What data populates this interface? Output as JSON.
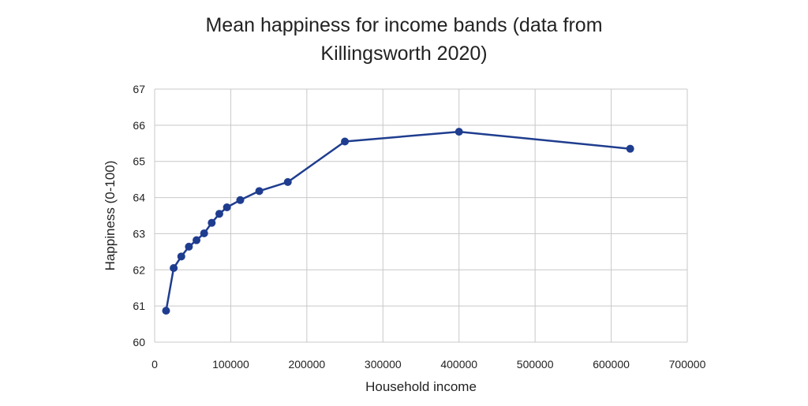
{
  "chart_data": {
    "type": "line",
    "title_lines": [
      "Mean happiness for income bands (data from",
      "Killingsworth 2020)"
    ],
    "xlabel": "Household income",
    "ylabel": "Happiness (0-100)",
    "xlim": [
      0,
      700000
    ],
    "ylim": [
      60,
      67
    ],
    "xticks": [
      0,
      100000,
      200000,
      300000,
      400000,
      500000,
      600000,
      700000
    ],
    "yticks": [
      60,
      61,
      62,
      63,
      64,
      65,
      66,
      67
    ],
    "grid": true,
    "color": "#1f3d8f",
    "series": [
      {
        "x": [
          15000,
          25000,
          35000,
          45000,
          55000,
          65000,
          75000,
          85000,
          95000,
          112500,
          137500,
          175000,
          250000,
          400000,
          625000
        ],
        "y": [
          60.87,
          62.05,
          62.37,
          62.64,
          62.82,
          63.01,
          63.3,
          63.55,
          63.73,
          63.93,
          64.18,
          64.43,
          65.55,
          65.82,
          65.35
        ]
      }
    ]
  }
}
